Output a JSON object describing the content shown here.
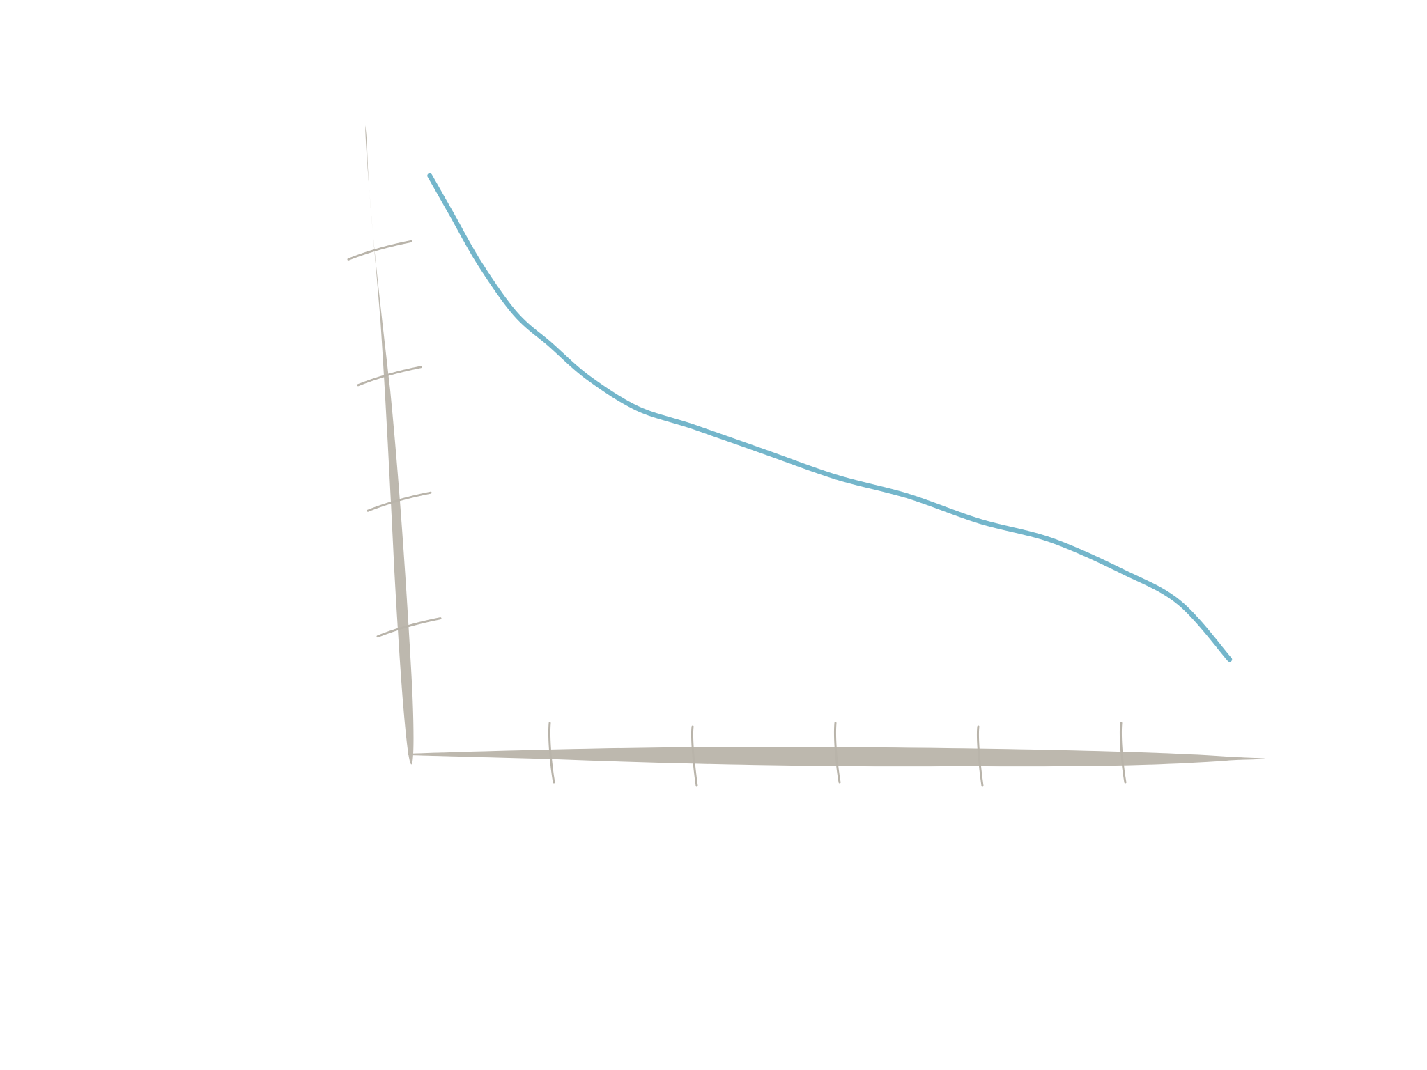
{
  "chart_data": {
    "type": "line",
    "title": "",
    "xlabel": "",
    "ylabel": "",
    "style": "hand-drawn sketch",
    "grid": false,
    "legend": "none",
    "x_ticks_count": 5,
    "y_ticks_count": 4,
    "xlim": [
      0,
      6
    ],
    "ylim": [
      0,
      5
    ],
    "series": [
      {
        "color": "#74b6cb",
        "x": [
          0.15,
          0.3,
          0.5,
          0.75,
          1.0,
          1.25,
          1.6,
          2.0,
          2.5,
          3.0,
          3.5,
          4.0,
          4.5,
          5.0,
          5.4,
          5.75
        ],
        "y": [
          4.6,
          4.3,
          3.9,
          3.5,
          3.25,
          3.0,
          2.75,
          2.6,
          2.4,
          2.2,
          2.05,
          1.85,
          1.7,
          1.45,
          1.2,
          0.75
        ]
      }
    ],
    "colors": {
      "axis": "#bdb8ae",
      "line": "#74b6cb"
    }
  }
}
